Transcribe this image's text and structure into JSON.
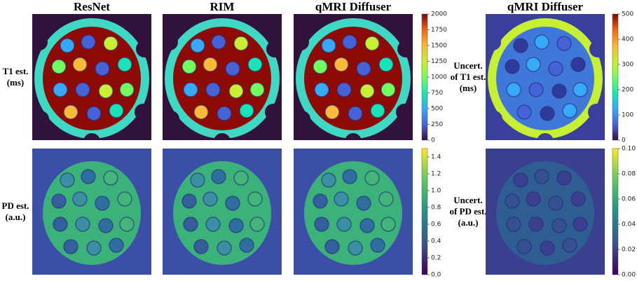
{
  "columns": [
    "ResNet",
    "RIM",
    "qMRI Diffuser",
    "qMRI Diffuser"
  ],
  "rows": [
    {
      "lines": [
        "T1 est.",
        "(ms)"
      ]
    },
    {
      "lines": [
        "PD est.",
        "(a.u.)"
      ]
    },
    {
      "lines": [
        "Uncert.",
        "of T1 est.",
        "(ms)"
      ]
    },
    {
      "lines": [
        "Uncert.",
        "of PD est.",
        "(a.u.)"
      ]
    }
  ],
  "colorbars": [
    {
      "lim": [
        0,
        2000
      ],
      "ticks": [
        0,
        250,
        500,
        750,
        1000,
        1250,
        1500,
        1750,
        2000
      ],
      "colormap": "turbo"
    },
    {
      "lim": [
        0,
        500
      ],
      "ticks": [
        0,
        100,
        200,
        300,
        400,
        500
      ],
      "colormap": "turbo"
    },
    {
      "lim": [
        0,
        1.5
      ],
      "ticks": [
        {
          "value": 0,
          "label": "0.0"
        },
        {
          "value": 0.2,
          "label": "0.2"
        },
        {
          "value": 0.4,
          "label": "0.4"
        },
        {
          "value": 0.6,
          "label": "0.6"
        },
        {
          "value": 0.8,
          "label": "0.8"
        },
        {
          "value": 1,
          "label": "1.0"
        },
        {
          "value": 1.2,
          "label": "1.2"
        },
        {
          "value": 1.4,
          "label": "1.4"
        }
      ],
      "colormap": "viridis"
    },
    {
      "lim": [
        0,
        0.1
      ],
      "ticks": [
        {
          "value": 0,
          "label": "0.00"
        },
        {
          "value": 0.02,
          "label": "0.02"
        },
        {
          "value": 0.04,
          "label": "0.04"
        },
        {
          "value": 0.06,
          "label": "0.06"
        },
        {
          "value": 0.08,
          "label": "0.08"
        },
        {
          "value": 0.1,
          "label": "0.10"
        }
      ],
      "colormap": "viridis"
    }
  ]
}
